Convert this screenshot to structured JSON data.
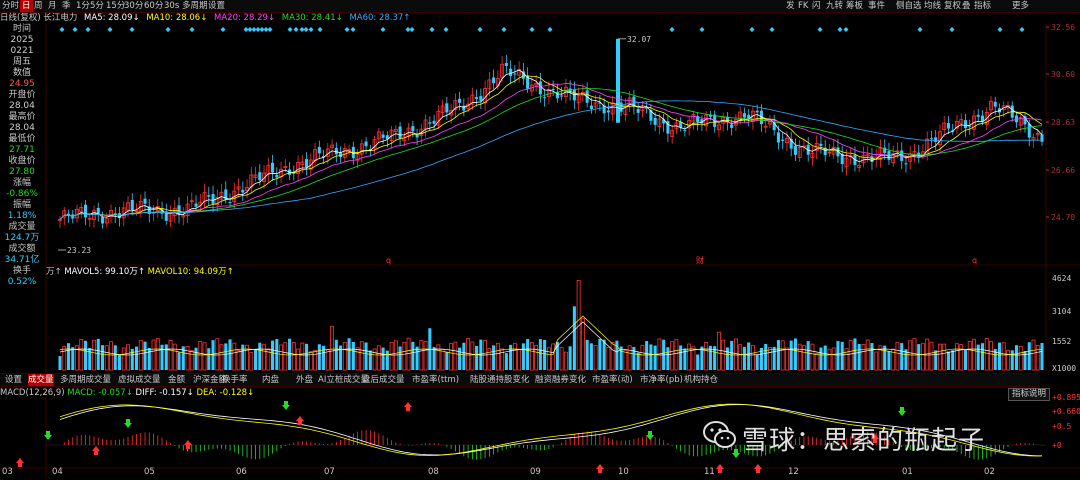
{
  "toolbar": {
    "left_items": [
      "分时",
      "日",
      "周",
      "月",
      "季",
      "1分",
      "5分",
      "15分",
      "30分",
      "60分",
      "30s",
      "多周期",
      "设置"
    ],
    "active_index": 1,
    "right_items": [
      "发",
      "FK",
      "闪",
      "九转",
      "筹板",
      "事件",
      "侧自选",
      "均线",
      "复权",
      "叠",
      "指标",
      "更多"
    ]
  },
  "ma_line": {
    "stock": "日线(复权) 长江电力",
    "ma5": "MA5: 28.09↓",
    "ma10": "MA10: 28.06↓",
    "ma20": "MA20: 28.29↓",
    "ma30": "MA30: 28.41↓",
    "ma60": "MA60: 28.37↑"
  },
  "info_panel": [
    {
      "text": "时间",
      "cls": "lbl"
    },
    {
      "text": "2025",
      "cls": "val-white"
    },
    {
      "text": "0221",
      "cls": "val-white"
    },
    {
      "text": "周五",
      "cls": "val-white"
    },
    {
      "text": "数值",
      "cls": "lbl"
    },
    {
      "text": "24.95",
      "cls": "val-red"
    },
    {
      "text": "开盘价",
      "cls": "lbl"
    },
    {
      "text": "28.04",
      "cls": "val-white"
    },
    {
      "text": "最高价",
      "cls": "lbl"
    },
    {
      "text": "28.04",
      "cls": "val-white"
    },
    {
      "text": "最低价",
      "cls": "lbl"
    },
    {
      "text": "27.71",
      "cls": "val-green"
    },
    {
      "text": "收盘价",
      "cls": "lbl"
    },
    {
      "text": "27.80",
      "cls": "val-green"
    },
    {
      "text": "涨幅",
      "cls": "lbl"
    },
    {
      "text": "-0.86%",
      "cls": "val-green"
    },
    {
      "text": "振幅",
      "cls": "lbl"
    },
    {
      "text": "1.18%",
      "cls": "val-cyan"
    },
    {
      "text": "成交量",
      "cls": "lbl"
    },
    {
      "text": "124.7万",
      "cls": "val-cyan"
    },
    {
      "text": "成交额",
      "cls": "lbl"
    },
    {
      "text": "34.71亿",
      "cls": "val-cyan"
    },
    {
      "text": "换手",
      "cls": "lbl"
    },
    {
      "text": "0.52%",
      "cls": "val-cyan"
    }
  ],
  "price_axis": [
    "32.56",
    "30.60",
    "28.63",
    "26.66",
    "24.70"
  ],
  "price_annotations": {
    "high": "32.07",
    "low": "23.23"
  },
  "period_marks": [
    "q",
    "财",
    "q"
  ],
  "volume": {
    "unit": "万↑",
    "mavol5": "MAVOL5: 99.10万↑",
    "mavol10": "MAVOL10: 94.09万↑",
    "axis": [
      "4624",
      "3104",
      "1552",
      "X1000"
    ]
  },
  "tabs": [
    "设置",
    "成交量",
    "多周期成交量",
    "虚拟成交量",
    "金额",
    "沪深金额",
    "换手率",
    "内盘",
    "外盘",
    "AI立桩成交量",
    "盘后成交量",
    "市盈率(ttm)",
    "陆股通持股变化",
    "融资融券变化",
    "市盈率(动)",
    "市净率(pb)",
    "机构持仓"
  ],
  "active_tab": 1,
  "macd": {
    "title": "MACD(12,26,9)",
    "macd": "MACD: -0.057↓",
    "diff": "DIFF: -0.157↓",
    "dea": "DEA: -0.128↓",
    "indicator_button": "指标说明",
    "axis": [
      "+0.895",
      "+0.660",
      "+0.5",
      "+0"
    ]
  },
  "months": [
    "03",
    "04",
    "05",
    "06",
    "07",
    "08",
    "09",
    "10",
    "11",
    "12",
    "01",
    "02"
  ],
  "watermark": "雪球：思索的瓶起子",
  "colors": {
    "up": "#ff3232",
    "down": "#33ccff",
    "ma5": "#ffffff",
    "ma10": "#ffff00",
    "ma20": "#ff44ff",
    "ma30": "#22dd22",
    "ma60": "#33aaff",
    "bg": "#000000",
    "grid": "#3a0000"
  }
}
